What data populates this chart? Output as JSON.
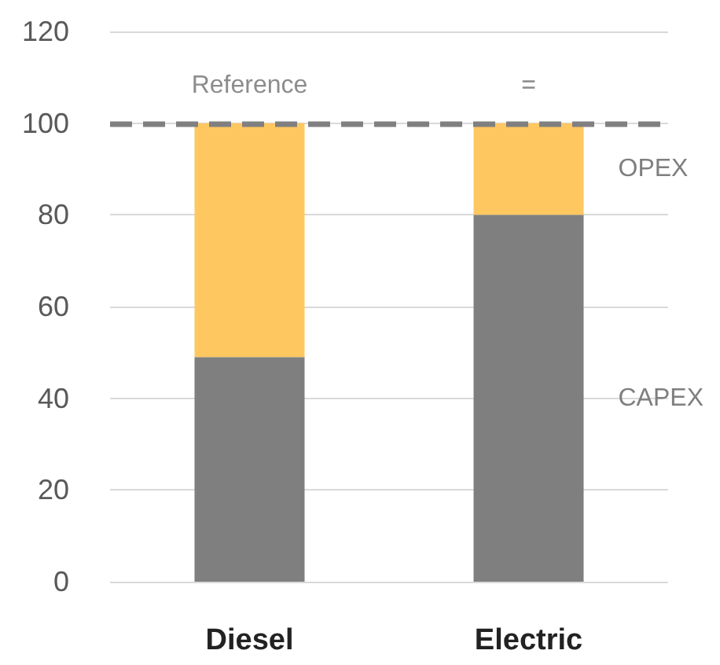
{
  "chart_data": {
    "type": "bar",
    "stacked": true,
    "categories": [
      "Diesel",
      "Electric"
    ],
    "series": [
      {
        "name": "CAPEX",
        "color": "#7f7f7f",
        "values": [
          49,
          80
        ]
      },
      {
        "name": "OPEX",
        "color": "#fec760",
        "values": [
          51,
          20
        ]
      }
    ],
    "ylim": [
      0,
      120
    ],
    "yticks": [
      0,
      20,
      40,
      60,
      80,
      100,
      120
    ],
    "grid": "y",
    "legend": false,
    "ref_lines": [
      {
        "axis": "y",
        "value": 100,
        "color": "#808080",
        "line_style": "dashed"
      }
    ],
    "annotations": [
      "Reference",
      "="
    ]
  }
}
